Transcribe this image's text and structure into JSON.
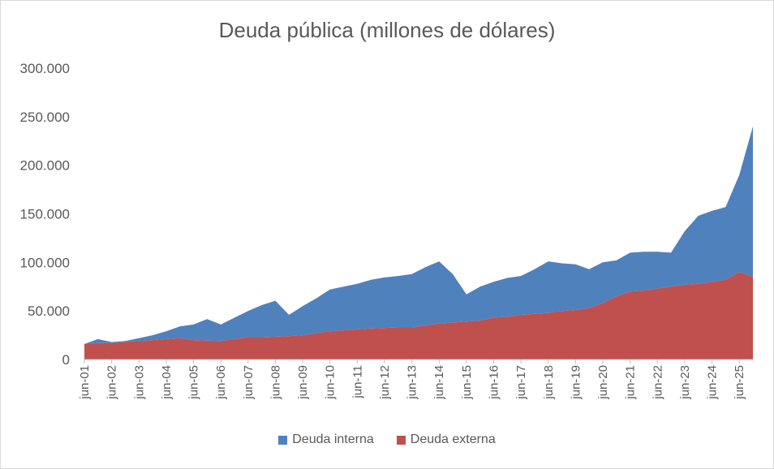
{
  "chart_data": {
    "type": "area",
    "stacked": true,
    "title": "Deuda pública (millones de dólares)",
    "xlabel": "",
    "ylabel": "",
    "ylim": [
      0,
      300000
    ],
    "yticks": [
      "0",
      "50.000",
      "100.000",
      "150.000",
      "200.000",
      "250.000",
      "300.000"
    ],
    "x_tick_labels": [
      "jun-01",
      "jun-02",
      "jun-03",
      "jun-04",
      "jun-05",
      "jun-06",
      "jun-07",
      "jun-08",
      "jun-09",
      "jun-10",
      "jun-11",
      "jun-12",
      "jun-13",
      "jun-14",
      "jun-15",
      "jun-16",
      "jun-17",
      "jun-18",
      "jun-19",
      "jun-20",
      "jun-21",
      "jun-22",
      "jun-23",
      "jun-24",
      "jun-25"
    ],
    "x_start": "jun-01",
    "x_end": "dic-25",
    "legend_position": "bottom",
    "series": [
      {
        "name": "Deuda interna",
        "color": "#4f81bd",
        "points": [
          [
            "jun-01",
            0
          ],
          [
            "dic-01",
            4000
          ],
          [
            "jun-02",
            1000
          ],
          [
            "dic-02",
            1000
          ],
          [
            "jun-03",
            3000
          ],
          [
            "dic-03",
            5000
          ],
          [
            "jun-04",
            8000
          ],
          [
            "dic-04",
            12000
          ],
          [
            "jun-05",
            16000
          ],
          [
            "dic-05",
            22000
          ],
          [
            "jun-06",
            17000
          ],
          [
            "dic-06",
            22000
          ],
          [
            "jun-07",
            27000
          ],
          [
            "dic-07",
            33000
          ],
          [
            "jun-08",
            37000
          ],
          [
            "dic-08",
            22000
          ],
          [
            "jun-09",
            30000
          ],
          [
            "dic-09",
            36000
          ],
          [
            "jun-10",
            43000
          ],
          [
            "dic-10",
            45000
          ],
          [
            "jun-11",
            47000
          ],
          [
            "dic-11",
            50000
          ],
          [
            "jun-12",
            52000
          ],
          [
            "dic-12",
            53000
          ],
          [
            "jun-13",
            55000
          ],
          [
            "dic-13",
            60000
          ],
          [
            "jun-14",
            64000
          ],
          [
            "dic-14",
            50000
          ],
          [
            "jun-15",
            28000
          ],
          [
            "dic-15",
            35000
          ],
          [
            "jun-16",
            37000
          ],
          [
            "dic-16",
            40000
          ],
          [
            "jun-17",
            40000
          ],
          [
            "dic-17",
            46000
          ],
          [
            "jun-18",
            53000
          ],
          [
            "dic-18",
            49000
          ],
          [
            "jun-19",
            47000
          ],
          [
            "dic-19",
            40000
          ],
          [
            "jun-20",
            42000
          ],
          [
            "dic-20",
            37000
          ],
          [
            "jun-21",
            40000
          ],
          [
            "dic-21",
            40000
          ],
          [
            "jun-22",
            38000
          ],
          [
            "dic-22",
            35000
          ],
          [
            "jun-23",
            55000
          ],
          [
            "dic-23",
            70000
          ],
          [
            "jun-24",
            73000
          ],
          [
            "dic-24",
            75000
          ],
          [
            "jun-25",
            100000
          ],
          [
            "dic-25",
            155000
          ]
        ]
      },
      {
        "name": "Deuda externa",
        "color": "#c0504d",
        "points": [
          [
            "jun-01",
            16000
          ],
          [
            "dic-01",
            17000
          ],
          [
            "jun-02",
            17000
          ],
          [
            "dic-02",
            18000
          ],
          [
            "jun-03",
            19000
          ],
          [
            "dic-03",
            20000
          ],
          [
            "jun-04",
            21000
          ],
          [
            "dic-04",
            22000
          ],
          [
            "jun-05",
            20000
          ],
          [
            "dic-05",
            19500
          ],
          [
            "jun-06",
            19000
          ],
          [
            "dic-06",
            21000
          ],
          [
            "jun-07",
            23000
          ],
          [
            "dic-07",
            23000
          ],
          [
            "jun-08",
            23500
          ],
          [
            "dic-08",
            24000
          ],
          [
            "jun-09",
            25000
          ],
          [
            "dic-09",
            27000
          ],
          [
            "jun-10",
            29000
          ],
          [
            "dic-10",
            30000
          ],
          [
            "jun-11",
            31000
          ],
          [
            "dic-11",
            32000
          ],
          [
            "jun-12",
            32500
          ],
          [
            "dic-12",
            33000
          ],
          [
            "jun-13",
            33000
          ],
          [
            "dic-13",
            35000
          ],
          [
            "jun-14",
            37000
          ],
          [
            "dic-14",
            38000
          ],
          [
            "jun-15",
            39000
          ],
          [
            "dic-15",
            40000
          ],
          [
            "jun-16",
            43000
          ],
          [
            "dic-16",
            44000
          ],
          [
            "jun-17",
            46000
          ],
          [
            "dic-17",
            47000
          ],
          [
            "jun-18",
            48000
          ],
          [
            "dic-18",
            50000
          ],
          [
            "jun-19",
            51000
          ],
          [
            "dic-19",
            53000
          ],
          [
            "jun-20",
            58000
          ],
          [
            "dic-20",
            65000
          ],
          [
            "jun-21",
            70000
          ],
          [
            "dic-21",
            71000
          ],
          [
            "jun-22",
            73000
          ],
          [
            "dic-22",
            75000
          ],
          [
            "jun-23",
            77000
          ],
          [
            "dic-23",
            78000
          ],
          [
            "jun-24",
            80000
          ],
          [
            "dic-24",
            82000
          ],
          [
            "jun-25",
            90000
          ],
          [
            "dic-25",
            85000
          ]
        ]
      }
    ]
  }
}
